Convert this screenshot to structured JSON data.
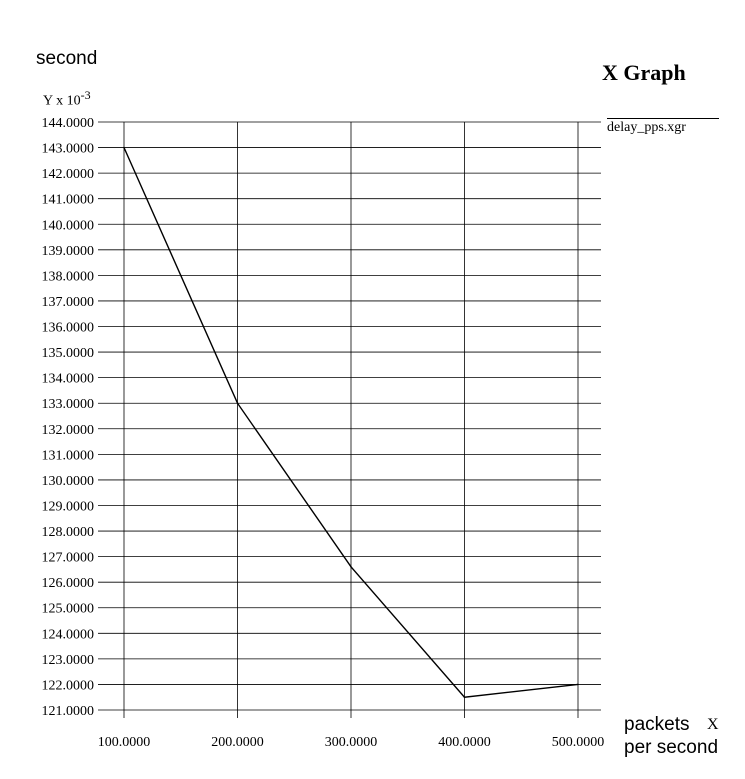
{
  "chart_data": {
    "type": "line",
    "title": "X Graph",
    "ylabel": "second",
    "yscale_label": "Y x 10",
    "yscale_exponent": "-3",
    "xlabel": "packets per second",
    "xlabel_line1": "packets",
    "xlabel_line2": "per second",
    "xaxis_name": "X",
    "legend": [
      "delay_pps.xgr"
    ],
    "legend_placement": "top-right",
    "grid": true,
    "xlim": [
      100,
      500
    ],
    "ylim": [
      121,
      144
    ],
    "x_ticks": [
      "100.0000",
      "200.0000",
      "300.0000",
      "400.0000",
      "500.0000"
    ],
    "x_tick_values": [
      100,
      200,
      300,
      400,
      500
    ],
    "y_ticks": [
      "121.0000",
      "122.0000",
      "123.0000",
      "124.0000",
      "125.0000",
      "126.0000",
      "127.0000",
      "128.0000",
      "129.0000",
      "130.0000",
      "131.0000",
      "132.0000",
      "133.0000",
      "134.0000",
      "135.0000",
      "136.0000",
      "137.0000",
      "138.0000",
      "139.0000",
      "140.0000",
      "141.0000",
      "142.0000",
      "143.0000",
      "144.0000"
    ],
    "y_tick_values": [
      121,
      122,
      123,
      124,
      125,
      126,
      127,
      128,
      129,
      130,
      131,
      132,
      133,
      134,
      135,
      136,
      137,
      138,
      139,
      140,
      141,
      142,
      143,
      144
    ],
    "series": [
      {
        "name": "delay_pps.xgr",
        "x": [
          100,
          200,
          300,
          400,
          500
        ],
        "y": [
          143.0,
          133.0,
          126.6,
          121.5,
          122.0
        ]
      }
    ]
  }
}
